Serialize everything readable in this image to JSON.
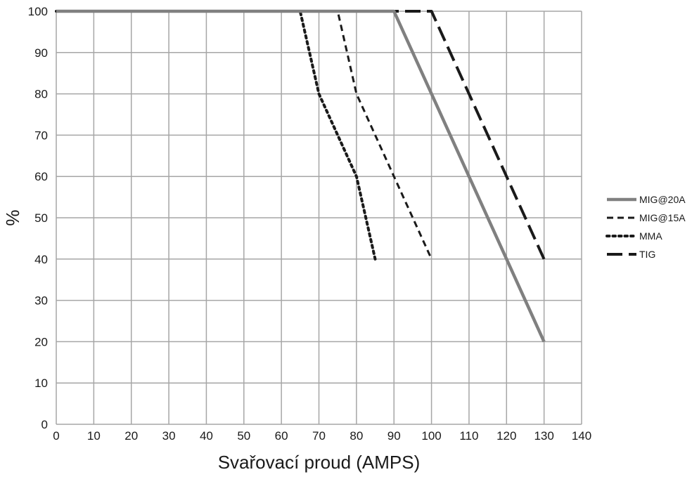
{
  "chart_data": {
    "type": "line",
    "title": "",
    "xlabel": "Svařovací proud (AMPS)",
    "ylabel": "%",
    "xlim": [
      0,
      140
    ],
    "ylim": [
      0,
      100
    ],
    "x_ticks": [
      "0",
      "10",
      "20",
      "30",
      "40",
      "50",
      "60",
      "70",
      "80",
      "90",
      "100",
      "110",
      "120",
      "130",
      "140"
    ],
    "y_ticks": [
      "0",
      "10",
      "20",
      "30",
      "40",
      "50",
      "60",
      "70",
      "80",
      "90",
      "100"
    ],
    "grid": true,
    "legend_position": "right",
    "series": [
      {
        "name": "MIG@20A",
        "style": "solid",
        "color": "#808080",
        "points": [
          [
            0,
            100
          ],
          [
            90,
            100
          ],
          [
            100,
            80
          ],
          [
            110,
            60
          ],
          [
            120,
            40
          ],
          [
            130,
            20
          ]
        ]
      },
      {
        "name": "MIG@15A",
        "style": "dashed",
        "color": "#1a1a1a",
        "points": [
          [
            0,
            100
          ],
          [
            75,
            100
          ],
          [
            80,
            80
          ],
          [
            90,
            60
          ],
          [
            100,
            40
          ]
        ]
      },
      {
        "name": "MMA",
        "style": "dotted",
        "color": "#1a1a1a",
        "points": [
          [
            0,
            100
          ],
          [
            65,
            100
          ],
          [
            70,
            80
          ],
          [
            80,
            60
          ],
          [
            85,
            40
          ]
        ]
      },
      {
        "name": "TIG",
        "style": "longdash",
        "color": "#1a1a1a",
        "points": [
          [
            0,
            100
          ],
          [
            100,
            100
          ],
          [
            110,
            80
          ],
          [
            120,
            60
          ],
          [
            130,
            40
          ]
        ]
      }
    ]
  }
}
